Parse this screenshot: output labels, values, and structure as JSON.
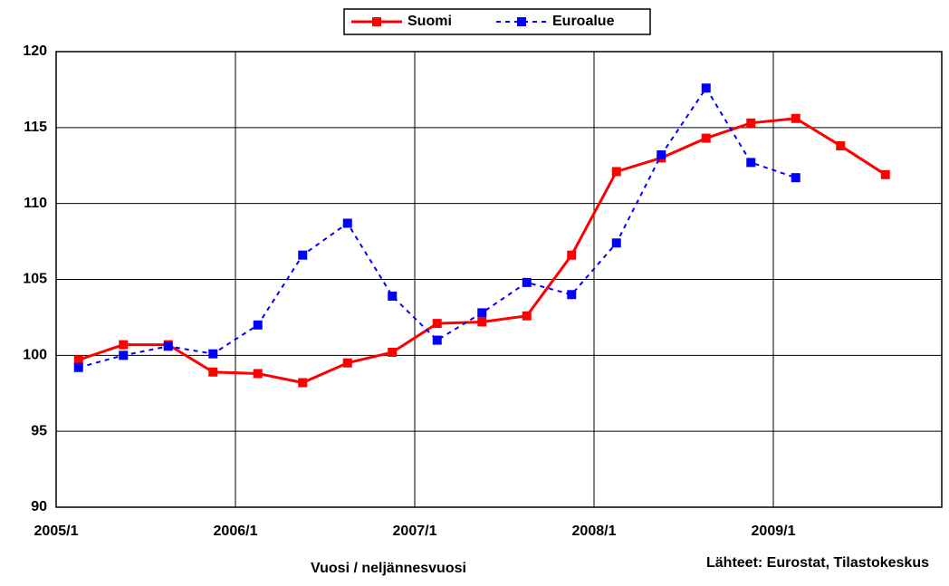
{
  "chart_data": {
    "type": "line",
    "categories": [
      "2005/1",
      null,
      null,
      null,
      "2006/1",
      null,
      null,
      null,
      "2007/1",
      null,
      null,
      null,
      "2008/1",
      null,
      null,
      null,
      "2009/1",
      null,
      null
    ],
    "series": [
      {
        "name": "Suomi",
        "color": "#ff0000",
        "dash": false,
        "values": [
          99.7,
          100.7,
          100.7,
          98.9,
          98.8,
          98.2,
          99.5,
          100.2,
          102.1,
          102.2,
          102.6,
          106.6,
          112.1,
          113.0,
          114.3,
          115.3,
          115.6,
          113.8,
          111.9
        ]
      },
      {
        "name": "Euroalue",
        "color": "#0000ff",
        "dash": true,
        "values": [
          99.2,
          100.0,
          100.6,
          100.1,
          102.0,
          106.6,
          108.7,
          103.9,
          101.0,
          102.8,
          104.8,
          104.0,
          107.4,
          113.2,
          117.6,
          112.7,
          111.7,
          null,
          null
        ]
      }
    ],
    "ylim": [
      90,
      120
    ],
    "yticks": [
      90,
      95,
      100,
      105,
      110,
      115,
      120
    ],
    "grid": true,
    "legend": "top",
    "xlabel": "Vuosi / neljännesvuosi",
    "source": "Lähteet: Eurostat, Tilastokeskus"
  }
}
